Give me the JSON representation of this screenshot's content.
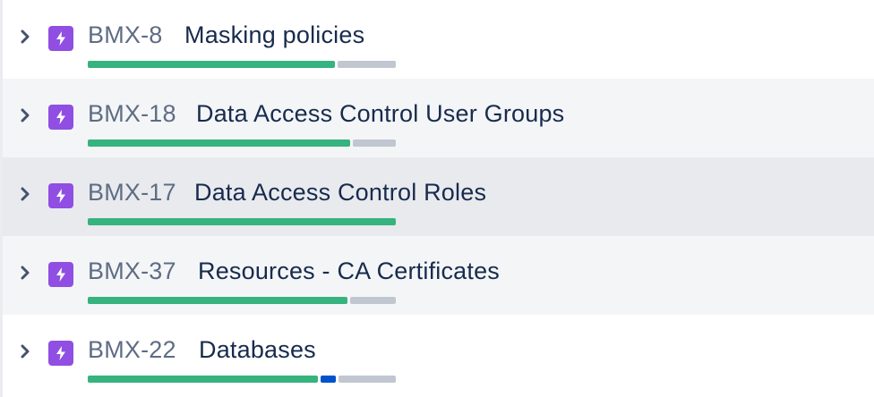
{
  "colors": {
    "epic_icon": "#904ee2",
    "done": "#36b37e",
    "in_progress": "#0052cc",
    "todo": "#c1c7d0",
    "key_text": "#5e6c84",
    "summary_text": "#172b4d"
  },
  "epics": [
    {
      "key": "BMX-8",
      "summary": "Masking policies",
      "progress": {
        "done": 0.81,
        "in_progress": 0.0,
        "todo": 0.19
      }
    },
    {
      "key": "BMX-18",
      "summary": "Data Access Control User Groups",
      "progress": {
        "done": 0.86,
        "in_progress": 0.0,
        "todo": 0.14
      }
    },
    {
      "key": "BMX-17",
      "summary": "Data Access Control Roles",
      "progress": {
        "done": 1.0,
        "in_progress": 0.0,
        "todo": 0.0
      }
    },
    {
      "key": "BMX-37",
      "summary": "Resources - CA Certificates",
      "progress": {
        "done": 0.85,
        "in_progress": 0.0,
        "todo": 0.15
      }
    },
    {
      "key": "BMX-22",
      "summary": "Databases",
      "progress": {
        "done": 0.76,
        "in_progress": 0.05,
        "todo": 0.19
      }
    }
  ]
}
